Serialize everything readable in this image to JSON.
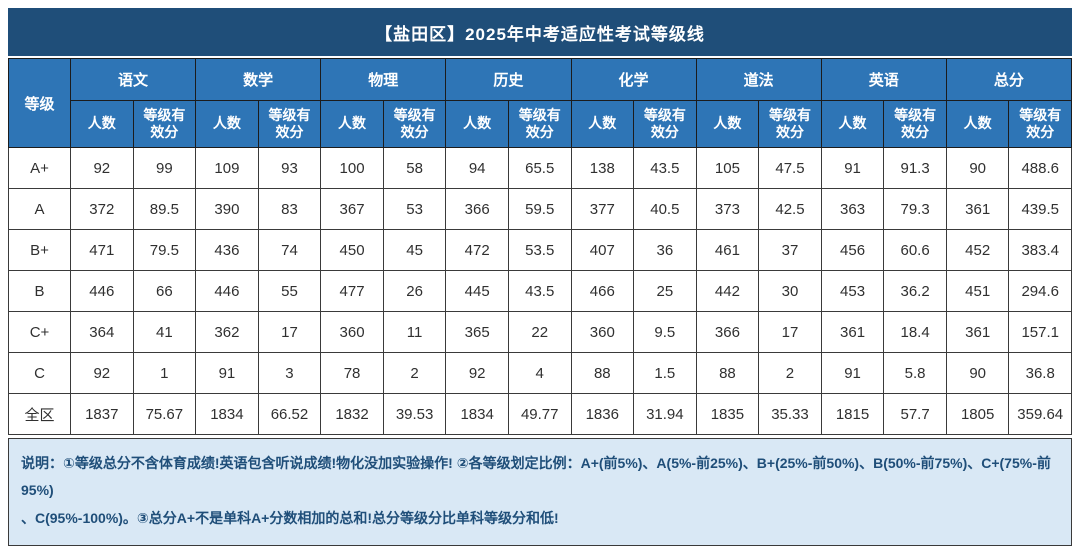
{
  "title": "【盐田区】2025年中考适应性考试等级线",
  "table": {
    "grade_header": "等级",
    "subjects": [
      "语文",
      "数学",
      "物理",
      "历史",
      "化学",
      "道法",
      "英语",
      "总分"
    ],
    "sub_headers": {
      "count": "人数",
      "score": "等级有效分"
    },
    "rows": [
      {
        "grade": "A+",
        "values": [
          "92",
          "99",
          "109",
          "93",
          "100",
          "58",
          "94",
          "65.5",
          "138",
          "43.5",
          "105",
          "47.5",
          "91",
          "91.3",
          "90",
          "488.6"
        ]
      },
      {
        "grade": "A",
        "values": [
          "372",
          "89.5",
          "390",
          "83",
          "367",
          "53",
          "366",
          "59.5",
          "377",
          "40.5",
          "373",
          "42.5",
          "363",
          "79.3",
          "361",
          "439.5"
        ]
      },
      {
        "grade": "B+",
        "values": [
          "471",
          "79.5",
          "436",
          "74",
          "450",
          "45",
          "472",
          "53.5",
          "407",
          "36",
          "461",
          "37",
          "456",
          "60.6",
          "452",
          "383.4"
        ]
      },
      {
        "grade": "B",
        "values": [
          "446",
          "66",
          "446",
          "55",
          "477",
          "26",
          "445",
          "43.5",
          "466",
          "25",
          "442",
          "30",
          "453",
          "36.2",
          "451",
          "294.6"
        ]
      },
      {
        "grade": "C+",
        "values": [
          "364",
          "41",
          "362",
          "17",
          "360",
          "11",
          "365",
          "22",
          "360",
          "9.5",
          "366",
          "17",
          "361",
          "18.4",
          "361",
          "157.1"
        ]
      },
      {
        "grade": "C",
        "values": [
          "92",
          "1",
          "91",
          "3",
          "78",
          "2",
          "92",
          "4",
          "88",
          "1.5",
          "88",
          "2",
          "91",
          "5.8",
          "90",
          "36.8"
        ]
      },
      {
        "grade": "全区",
        "values": [
          "1837",
          "75.67",
          "1834",
          "66.52",
          "1832",
          "39.53",
          "1834",
          "49.77",
          "1836",
          "31.94",
          "1835",
          "35.33",
          "1815",
          "57.7",
          "1805",
          "359.64"
        ]
      }
    ]
  },
  "note": {
    "line1": "说明：①等级总分不含体育成绩!英语包含听说成绩!物化没加实验操作! ②各等级划定比例：A+(前5%)、A(5%-前25%)、B+(25%-前50%)、B(50%-前75%)、C+(75%-前95%)",
    "line2": "、C(95%-100%)。③总分A+不是单科A+分数相加的总和!总分等级分比单科等级分和低!"
  },
  "colors": {
    "title_bar": "#1F4E79",
    "header_fill": "#2E75B6",
    "total_score_text": "#2E74B5",
    "note_bg": "#D9E8F5",
    "note_text": "#1F4E79"
  }
}
